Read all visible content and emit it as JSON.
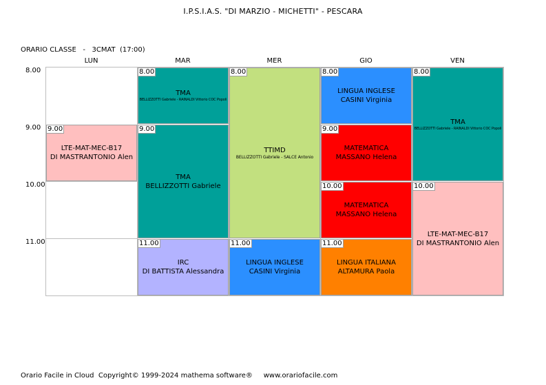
{
  "header": {
    "school": "I.P.S.I.A.S. \"DI MARZIO - MICHETTI\" - PESCARA",
    "class_line": "ORARIO CLASSE   -   3CMAT  (17:00)"
  },
  "days": [
    "LUN",
    "MAR",
    "MER",
    "GIO",
    "VEN"
  ],
  "times": [
    "8.00",
    "9.00",
    "10.00",
    "11.00"
  ],
  "lessons": {
    "mar_tma_1": {
      "time": "8.00",
      "subject": "TMA",
      "teacher": "BELLIZZOTTI Gabriele - RAINALDI Vittorio COC Popoli"
    },
    "mar_tma_2": {
      "time": "9.00",
      "subject": "TMA",
      "teacher": "BELLIZZOTTI Gabriele"
    },
    "mar_irc": {
      "time": "11.00",
      "subject": "IRC",
      "teacher": "DI BATTISTA Alessandra"
    },
    "lun_lte": {
      "time": "9.00",
      "subject": "LTE-MAT-MEC-B17",
      "teacher": "DI MASTRANTONIO Alen"
    },
    "mer_ttimd": {
      "time": "8.00",
      "subject": "TTIMD",
      "teacher": "BELLIZZOTTI Gabriele - SALCE Antonio"
    },
    "mer_inglese": {
      "time": "11.00",
      "subject": "LINGUA INGLESE",
      "teacher": "CASINI Virginia"
    },
    "gio_inglese": {
      "time": "8.00",
      "subject": "LINGUA INGLESE",
      "teacher": "CASINI Virginia"
    },
    "gio_mat_1": {
      "time": "9.00",
      "subject": "MATEMATICA",
      "teacher": "MASSANO Helena"
    },
    "gio_mat_2": {
      "time": "10.00",
      "subject": "MATEMATICA",
      "teacher": "MASSANO Helena"
    },
    "gio_italiana": {
      "time": "11.00",
      "subject": "LINGUA ITALIANA",
      "teacher": "ALTAMURA Paola"
    },
    "ven_tma": {
      "time": "8.00",
      "subject": "TMA",
      "teacher": "BELLIZZOTTI Gabriele - RAINALDI Vittorio COC Popoli"
    },
    "ven_lte": {
      "time": "10.00",
      "subject": "LTE-MAT-MEC-B17",
      "teacher": "DI MASTRANTONIO Alen"
    }
  },
  "colors": {
    "teal": "#00a099",
    "green": "#c2e07f",
    "pink": "#ffbfbf",
    "blue": "#2b8fff",
    "red": "#ff0000",
    "orange": "#ff8000",
    "lavender": "#b3b3ff"
  },
  "footer": {
    "text": "Orario Facile in Cloud  Copyright© 1999-2024 mathema software®     www.orariofacile.com"
  }
}
